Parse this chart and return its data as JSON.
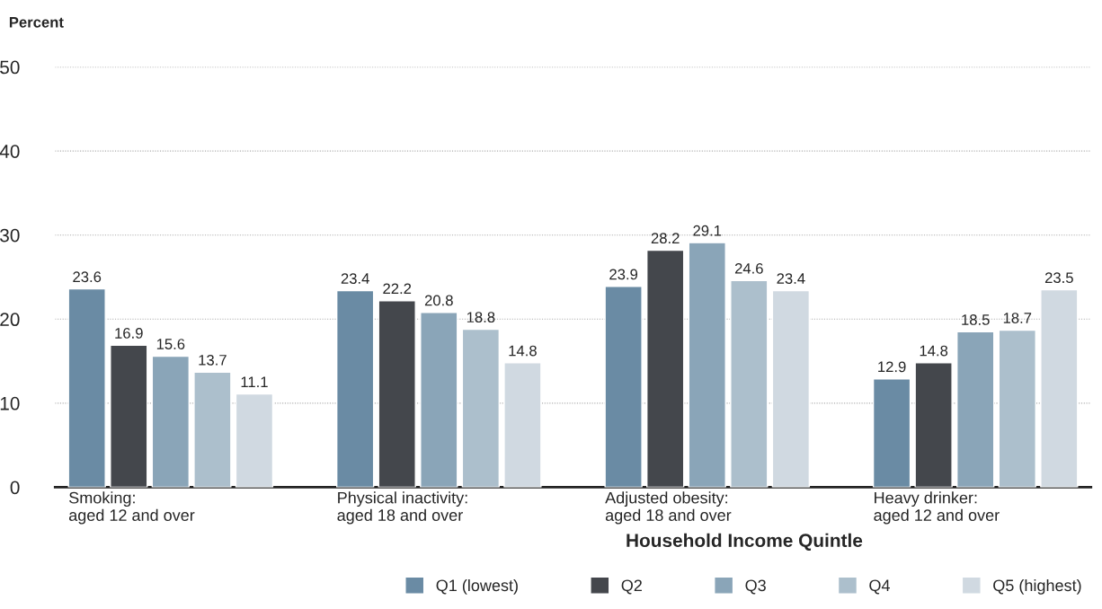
{
  "chart_data": {
    "type": "bar",
    "ylabel": "Percent",
    "legend_title": "Household Income Quintle",
    "categories": [
      "Smoking:\naged 12 and over",
      "Physical inactivity:\naged 18 and over",
      "Adjusted obesity:\naged 18 and over",
      "Heavy drinker:\naged 12 and over"
    ],
    "series": [
      {
        "name": "Q1 (lowest)",
        "color": "#6a8ba4",
        "values": [
          23.6,
          23.4,
          23.9,
          12.9
        ]
      },
      {
        "name": "Q2",
        "color": "#44474c",
        "values": [
          16.9,
          22.2,
          28.2,
          14.8
        ]
      },
      {
        "name": "Q3",
        "color": "#8aa5b8",
        "values": [
          15.6,
          20.8,
          29.1,
          18.5
        ]
      },
      {
        "name": "Q4",
        "color": "#acbfcc",
        "values": [
          13.7,
          18.8,
          24.6,
          18.7
        ]
      },
      {
        "name": "Q5 (highest)",
        "color": "#d0d9e1",
        "values": [
          11.1,
          14.8,
          23.4,
          23.5
        ]
      }
    ],
    "ylim": [
      0,
      50
    ],
    "yticks": [
      0,
      10,
      20,
      30,
      40,
      50
    ],
    "grid": "y",
    "data_labels": true,
    "legend": "bottom"
  }
}
